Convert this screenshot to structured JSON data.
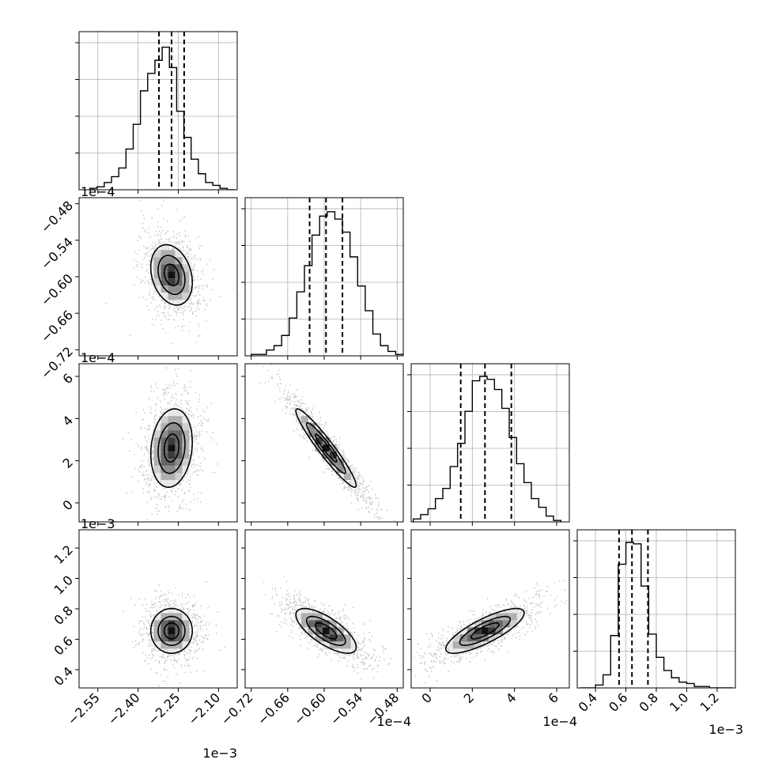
{
  "chart_data": {
    "type": "corner",
    "n_params": 4,
    "grid": true,
    "colors": {
      "line": "#000000",
      "grid": "#b0b0b0",
      "points": "#7f7f7f",
      "bg": "#ffffff"
    },
    "axes": [
      {
        "lim": [
          -2.62,
          -2.03
        ],
        "ticks": [
          -2.55,
          -2.4,
          -2.25,
          -2.1
        ],
        "tick_labels": [
          "−2.55",
          "−2.40",
          "−2.25",
          "−2.10"
        ],
        "offset": "1e−3"
      },
      {
        "lim": [
          -0.73,
          -0.47
        ],
        "ticks": [
          -0.72,
          -0.66,
          -0.6,
          -0.54,
          -0.48
        ],
        "tick_labels": [
          "−0.72",
          "−0.66",
          "−0.60",
          "−0.54",
          "−0.48"
        ],
        "offset": "1e−4"
      },
      {
        "lim": [
          -0.9,
          6.6
        ],
        "ticks": [
          0,
          2,
          4,
          6
        ],
        "tick_labels": [
          "0",
          "2",
          "4",
          "6"
        ],
        "offset": "1e−4"
      },
      {
        "lim": [
          0.28,
          1.32
        ],
        "ticks": [
          0.4,
          0.6,
          0.8,
          1.0,
          1.2
        ],
        "tick_labels": [
          "0.4",
          "0.6",
          "0.8",
          "1.0",
          "1.2"
        ],
        "offset": "1e−3"
      }
    ],
    "quantiles": [
      [
        -2.322,
        -2.275,
        -2.228
      ],
      [
        -0.624,
        -0.597,
        -0.57
      ],
      [
        1.45,
        2.6,
        3.85
      ],
      [
        0.555,
        0.64,
        0.745
      ]
    ],
    "histograms": [
      {
        "edges_range": [
          -2.58,
          -2.04
        ],
        "counts": [
          1,
          2,
          5,
          9,
          15,
          28,
          45,
          68,
          80,
          89,
          98,
          84,
          54,
          36,
          21,
          11,
          5,
          3,
          1,
          0
        ]
      },
      {
        "edges_range": [
          -0.72,
          -0.47
        ],
        "counts": [
          1,
          1,
          4,
          7,
          14,
          26,
          44,
          62,
          83,
          96,
          99,
          94,
          85,
          68,
          48,
          31,
          15,
          7,
          3,
          1
        ]
      },
      {
        "edges_range": [
          -0.8,
          6.2
        ],
        "counts": [
          2,
          5,
          9,
          16,
          23,
          38,
          54,
          76,
          97,
          100,
          98,
          91,
          78,
          58,
          40,
          27,
          16,
          10,
          4,
          1
        ]
      },
      {
        "edges_range": [
          0.3,
          1.3
        ],
        "counts": [
          0,
          0,
          2,
          9,
          36,
          85,
          100,
          99,
          70,
          37,
          21,
          12,
          7,
          4,
          3,
          1,
          1,
          0,
          0,
          0
        ]
      }
    ],
    "correlations": [
      [
        1,
        2,
        -0.25
      ],
      [
        1,
        3,
        0.15
      ],
      [
        1,
        4,
        0.0
      ],
      [
        2,
        3,
        -0.95
      ],
      [
        2,
        4,
        -0.72
      ],
      [
        3,
        4,
        0.8
      ]
    ],
    "means": [
      -2.275,
      -0.597,
      2.6,
      0.655
    ],
    "stds": [
      0.05,
      0.032,
      1.2,
      0.095
    ]
  }
}
